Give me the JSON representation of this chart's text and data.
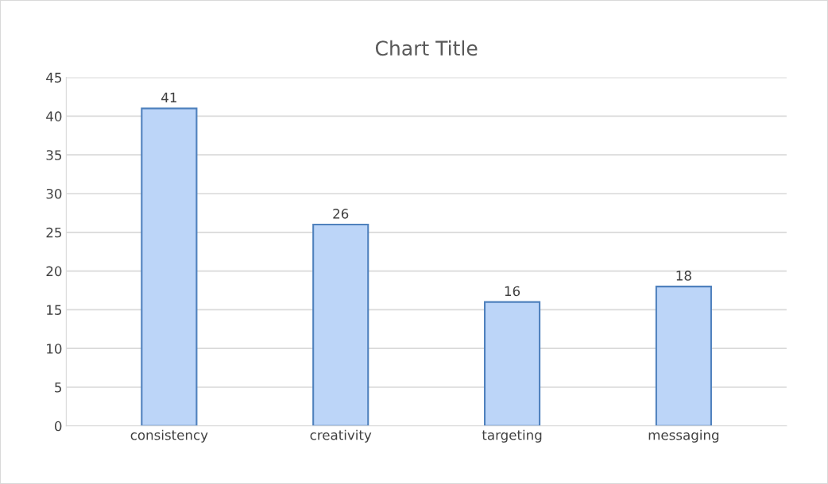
{
  "chart_data": {
    "type": "bar",
    "title": "Chart Title",
    "categories": [
      "consistency",
      "creativity",
      "targeting",
      "messaging"
    ],
    "values": [
      41,
      26,
      16,
      18
    ],
    "color": "#bcd5f8",
    "ylim": [
      0,
      45
    ],
    "yticks": [
      0,
      5,
      10,
      15,
      20,
      25,
      30,
      35,
      40,
      45
    ],
    "grid": "y",
    "data_labels": true
  }
}
